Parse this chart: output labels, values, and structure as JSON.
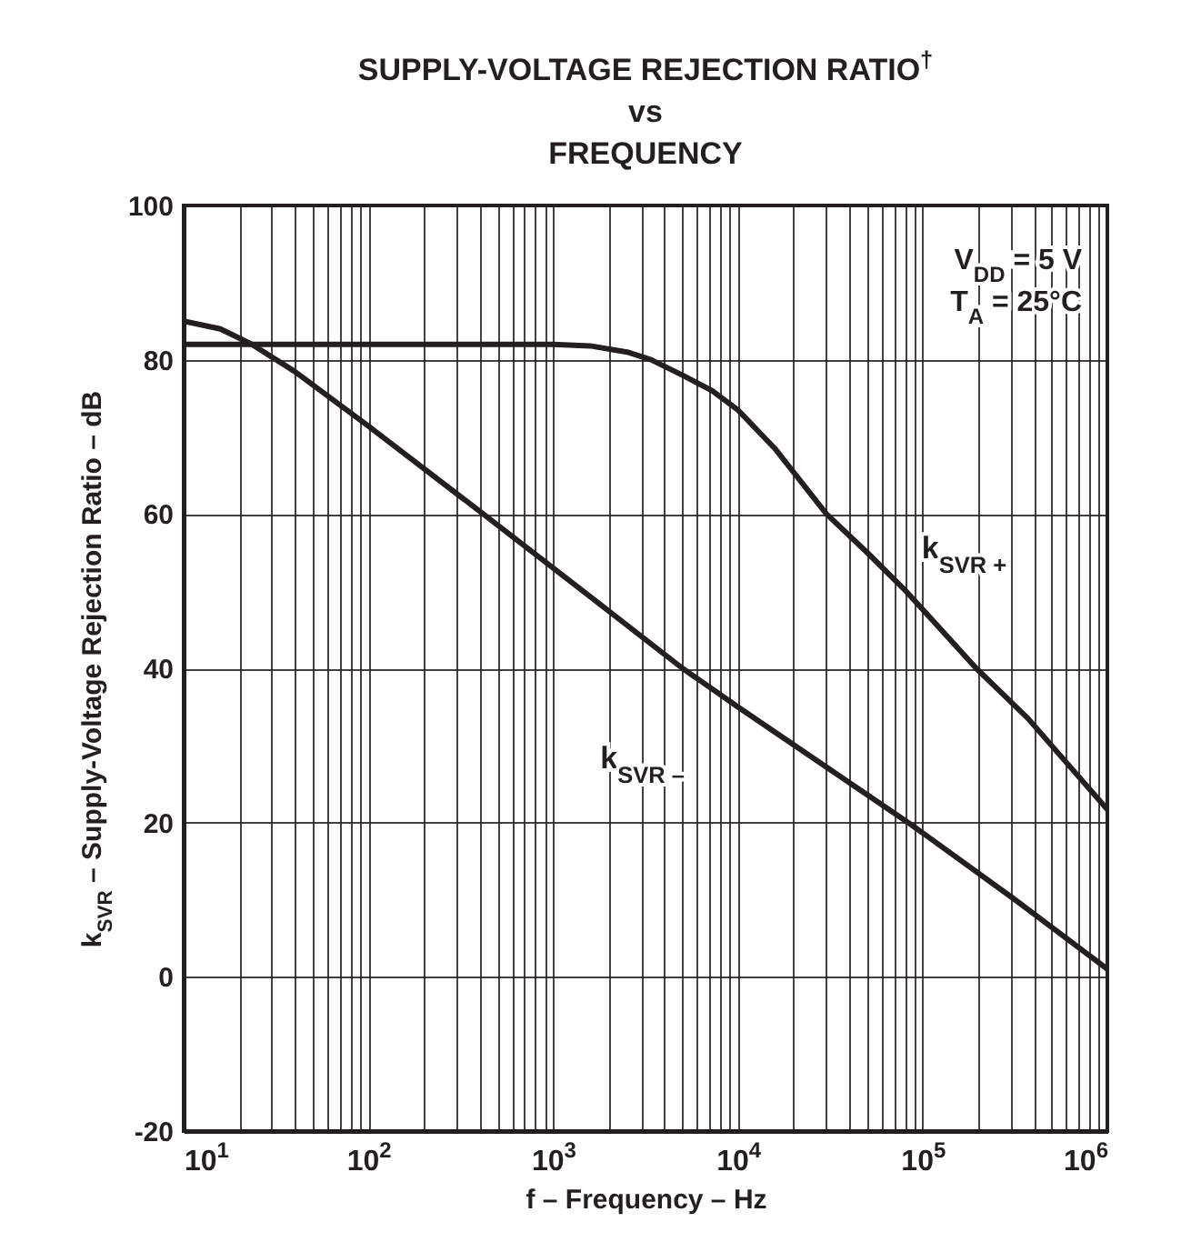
{
  "chart_data": {
    "type": "line",
    "title": "SUPPLY-VOLTAGE REJECTION RATIO$^{†}$\nvs\nFREQUENCY",
    "xlabel": "f – Frequency – Hz",
    "ylabel": "k$_{SVR}$ – Supply-Voltage Rejection Ratio – dB",
    "log": "x",
    "grid": true,
    "legend": false,
    "marker": "none",
    "line_style": "solid",
    "xlim": [
      10,
      1000000
    ],
    "ylim": [
      -20,
      100
    ],
    "yticks": [
      -20,
      0,
      20,
      40,
      60,
      80,
      100
    ],
    "xticks": [
      {
        "value": 10,
        "label": "10$^{1}$"
      },
      {
        "value": 20,
        "label": null
      },
      {
        "value": 30,
        "label": null
      },
      {
        "value": 40,
        "label": null
      },
      {
        "value": 50,
        "label": null
      },
      {
        "value": 60,
        "label": null
      },
      {
        "value": 70,
        "label": null
      },
      {
        "value": 80,
        "label": null
      },
      {
        "value": 90,
        "label": null
      },
      {
        "value": 100,
        "label": "10$^{2}$"
      },
      {
        "value": 200,
        "label": null
      },
      {
        "value": 300,
        "label": null
      },
      {
        "value": 400,
        "label": null
      },
      {
        "value": 500,
        "label": null
      },
      {
        "value": 600,
        "label": null
      },
      {
        "value": 700,
        "label": null
      },
      {
        "value": 800,
        "label": null
      },
      {
        "value": 900,
        "label": null
      },
      {
        "value": 1000,
        "label": "10$^{3}$"
      },
      {
        "value": 2000,
        "label": null
      },
      {
        "value": 3000,
        "label": null
      },
      {
        "value": 4000,
        "label": null
      },
      {
        "value": 5000,
        "label": null
      },
      {
        "value": 6000,
        "label": null
      },
      {
        "value": 7000,
        "label": null
      },
      {
        "value": 8000,
        "label": null
      },
      {
        "value": 9000,
        "label": null
      },
      {
        "value": 10000,
        "label": "10$^{4}$"
      },
      {
        "value": 20000,
        "label": null
      },
      {
        "value": 30000,
        "label": null
      },
      {
        "value": 40000,
        "label": null
      },
      {
        "value": 50000,
        "label": null
      },
      {
        "value": 60000,
        "label": null
      },
      {
        "value": 70000,
        "label": null
      },
      {
        "value": 80000,
        "label": null
      },
      {
        "value": 90000,
        "label": null
      },
      {
        "value": 100000,
        "label": "10$^{5}$"
      },
      {
        "value": 200000,
        "label": null
      },
      {
        "value": 300000,
        "label": null
      },
      {
        "value": 400000,
        "label": null
      },
      {
        "value": 500000,
        "label": null
      },
      {
        "value": 600000,
        "label": null
      },
      {
        "value": 700000,
        "label": null
      },
      {
        "value": 800000,
        "label": null
      },
      {
        "value": 900000,
        "label": null
      },
      {
        "value": 1000000,
        "label": "10$^{6}$"
      }
    ],
    "annotations": [
      "V$_{DD}$ = 5 V",
      "T$_{A}$ = 25°C"
    ],
    "series": [
      {
        "name": "k$_{SVR +}$",
        "color": "#231f20",
        "x": [
          10,
          100,
          1000,
          1585,
          2512,
          3388,
          5012,
          7244,
          10000,
          15849,
          30200,
          50119,
          81283,
          195000,
          371535,
          1000000
        ],
        "values": [
          82,
          82,
          82,
          81.8,
          81,
          80,
          78,
          76,
          73.5,
          68.5,
          60,
          55,
          50,
          40,
          33.5,
          21.7
        ]
      },
      {
        "name": "k$_{SVR –}$",
        "color": "#231f20",
        "x": [
          10,
          15.8,
          23.4,
          39.8,
          100,
          398,
          1585,
          5012,
          10000,
          87096,
          316228,
          1000000
        ],
        "values": [
          85,
          84,
          82,
          78.5,
          71.4,
          60.4,
          49.3,
          40,
          35,
          19.7,
          10,
          1
        ]
      }
    ]
  }
}
